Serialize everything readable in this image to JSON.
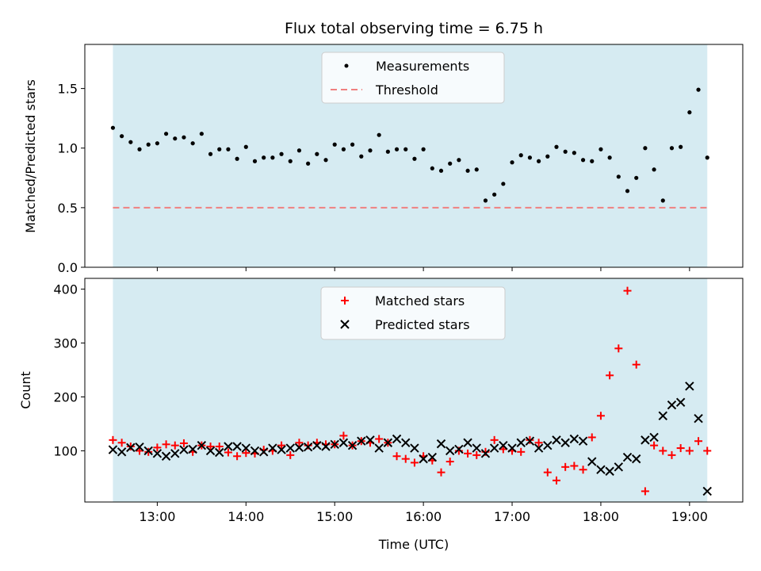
{
  "chart_data": [
    {
      "type": "scatter",
      "title": "Flux total observing time = 6.75 h",
      "xlabel": "",
      "ylabel": "Matched/Predicted stars",
      "ylim": [
        0,
        1.87
      ],
      "y_ticks": [
        "0.0",
        "0.5",
        "1.0",
        "1.5"
      ],
      "legend_position": "top-center",
      "shaded_span": [
        "12:30",
        "19:12"
      ],
      "colors": {
        "shade": "#add8e6",
        "measurements": "#000000",
        "threshold": "#f08080"
      },
      "series": [
        {
          "name": "Measurements",
          "x": [
            "12:30",
            "12:36",
            "12:42",
            "12:48",
            "12:54",
            "13:00",
            "13:06",
            "13:12",
            "13:18",
            "13:24",
            "13:30",
            "13:36",
            "13:42",
            "13:48",
            "13:54",
            "14:00",
            "14:06",
            "14:12",
            "14:18",
            "14:24",
            "14:30",
            "14:36",
            "14:42",
            "14:48",
            "14:54",
            "15:00",
            "15:06",
            "15:12",
            "15:18",
            "15:24",
            "15:30",
            "15:36",
            "15:42",
            "15:48",
            "15:54",
            "16:00",
            "16:06",
            "16:12",
            "16:18",
            "16:24",
            "16:30",
            "16:36",
            "16:42",
            "16:48",
            "16:54",
            "17:00",
            "17:06",
            "17:12",
            "17:18",
            "17:24",
            "17:30",
            "17:36",
            "17:42",
            "17:48",
            "17:54",
            "18:00",
            "18:06",
            "18:12",
            "18:18",
            "18:24",
            "18:30",
            "18:36",
            "18:42",
            "18:48",
            "18:54",
            "19:00",
            "19:06",
            "19:12"
          ],
          "values": [
            1.17,
            1.1,
            1.05,
            0.99,
            1.03,
            1.04,
            1.12,
            1.08,
            1.09,
            1.04,
            1.12,
            0.95,
            0.99,
            0.99,
            0.91,
            1.01,
            0.89,
            0.92,
            0.92,
            0.95,
            0.89,
            0.98,
            0.87,
            0.95,
            0.9,
            1.03,
            0.99,
            1.03,
            0.93,
            0.98,
            1.11,
            0.97,
            0.99,
            0.99,
            0.91,
            0.99,
            0.83,
            0.81,
            0.87,
            0.9,
            0.81,
            0.82,
            0.56,
            0.61,
            0.7,
            0.88,
            0.94,
            0.92,
            0.89,
            0.93,
            1.01,
            0.97,
            0.96,
            0.9,
            0.89,
            0.99,
            0.92,
            0.76,
            0.64,
            0.75,
            1.0,
            0.82,
            0.56,
            1.0,
            1.01,
            1.3,
            1.49,
            0.92
          ]
        },
        {
          "name": "Threshold",
          "x": [
            "12:30",
            "19:12"
          ],
          "values": [
            0.5,
            0.5
          ]
        }
      ]
    },
    {
      "type": "scatter",
      "title": "",
      "xlabel": "Time (UTC)",
      "ylabel": "Count",
      "ylim": [
        5,
        420
      ],
      "y_ticks": [
        "100",
        "200",
        "300",
        "400"
      ],
      "x_ticks": [
        "13:00",
        "14:00",
        "15:00",
        "16:00",
        "17:00",
        "18:00",
        "19:00"
      ],
      "legend_position": "top-center",
      "shaded_span": [
        "12:30",
        "19:12"
      ],
      "colors": {
        "shade": "#add8e6",
        "matched": "#ff0000",
        "predicted": "#000000"
      },
      "series": [
        {
          "name": "Matched stars",
          "x": [
            "12:30",
            "12:36",
            "12:42",
            "12:48",
            "12:54",
            "13:00",
            "13:06",
            "13:12",
            "13:18",
            "13:24",
            "13:30",
            "13:36",
            "13:42",
            "13:48",
            "13:54",
            "14:00",
            "14:06",
            "14:12",
            "14:18",
            "14:24",
            "14:30",
            "14:36",
            "14:42",
            "14:48",
            "14:54",
            "15:00",
            "15:06",
            "15:12",
            "15:18",
            "15:24",
            "15:30",
            "15:36",
            "15:42",
            "15:48",
            "15:54",
            "16:00",
            "16:06",
            "16:12",
            "16:18",
            "16:24",
            "16:30",
            "16:36",
            "16:42",
            "16:48",
            "16:54",
            "17:00",
            "17:06",
            "17:12",
            "17:18",
            "17:24",
            "17:30",
            "17:36",
            "17:42",
            "17:48",
            "17:54",
            "18:00",
            "18:06",
            "18:12",
            "18:18",
            "18:24",
            "18:30",
            "18:36",
            "18:42",
            "18:48",
            "18:54",
            "19:00",
            "19:06",
            "19:12"
          ],
          "values": [
            120,
            115,
            108,
            100,
            98,
            106,
            112,
            110,
            114,
            98,
            110,
            108,
            108,
            97,
            90,
            96,
            95,
            102,
            100,
            110,
            92,
            115,
            110,
            115,
            112,
            112,
            128,
            110,
            118,
            115,
            122,
            115,
            90,
            85,
            78,
            90,
            82,
            60,
            80,
            100,
            95,
            92,
            98,
            120,
            103,
            100,
            98,
            120,
            115,
            60,
            45,
            70,
            72,
            65,
            125,
            165,
            240,
            290,
            397,
            260,
            25,
            110,
            100,
            92,
            105,
            100,
            118,
            100
          ]
        },
        {
          "name": "Predicted stars",
          "x": [
            "12:30",
            "12:36",
            "12:42",
            "12:48",
            "12:54",
            "13:00",
            "13:06",
            "13:12",
            "13:18",
            "13:24",
            "13:30",
            "13:36",
            "13:42",
            "13:48",
            "13:54",
            "14:00",
            "14:06",
            "14:12",
            "14:18",
            "14:24",
            "14:30",
            "14:36",
            "14:42",
            "14:48",
            "14:54",
            "15:00",
            "15:06",
            "15:12",
            "15:18",
            "15:24",
            "15:30",
            "15:36",
            "15:42",
            "15:48",
            "15:54",
            "16:00",
            "16:06",
            "16:12",
            "16:18",
            "16:24",
            "16:30",
            "16:36",
            "16:42",
            "16:48",
            "16:54",
            "17:00",
            "17:06",
            "17:12",
            "17:18",
            "17:24",
            "17:30",
            "17:36",
            "17:42",
            "17:48",
            "17:54",
            "18:00",
            "18:06",
            "18:12",
            "18:18",
            "18:24",
            "18:30",
            "18:36",
            "18:42",
            "18:48",
            "18:54",
            "19:00",
            "19:06",
            "19:12"
          ],
          "values": [
            102,
            98,
            106,
            107,
            100,
            95,
            90,
            95,
            102,
            103,
            110,
            100,
            97,
            108,
            108,
            105,
            100,
            98,
            105,
            102,
            105,
            106,
            107,
            110,
            108,
            112,
            115,
            110,
            118,
            120,
            105,
            115,
            122,
            115,
            105,
            85,
            88,
            113,
            100,
            103,
            115,
            105,
            95,
            105,
            110,
            105,
            115,
            118,
            105,
            110,
            120,
            115,
            122,
            118,
            80,
            65,
            62,
            70,
            88,
            85,
            120,
            125,
            165,
            185,
            190,
            220,
            160,
            25
          ]
        }
      ]
    }
  ]
}
